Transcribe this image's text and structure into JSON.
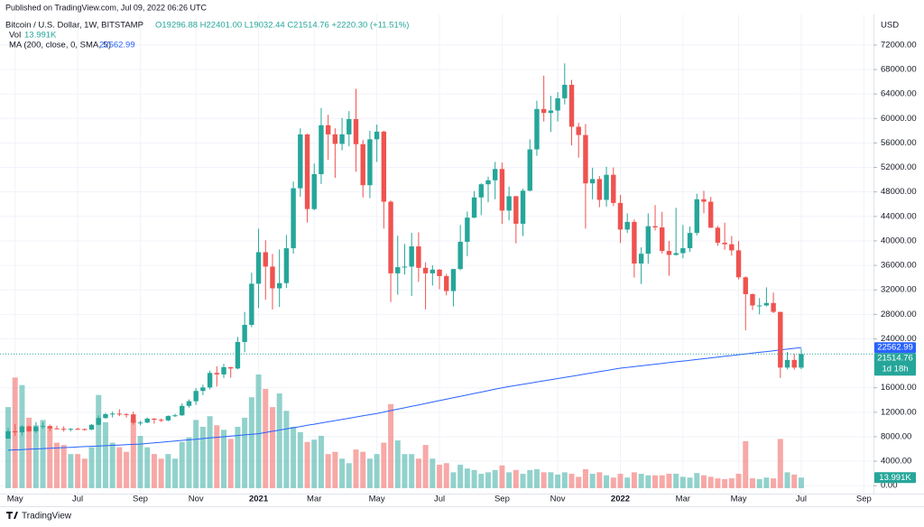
{
  "header": "Published on TradingView.com, Jul 09, 2022 06:26 UTC",
  "footer": "TradingView",
  "chart_data": {
    "type": "candlestick",
    "title": "Bitcoin / U.S. Dollar, 1W, BITSTAMP",
    "ohlc_legend": "O19296.88 H22401.00 L19032.44 C21514.76 +2220.30 (+11.51%)",
    "volume_legend": {
      "name": "Vol",
      "value": "13.991K"
    },
    "ma_legend": {
      "name": "MA (200, close, 0, SMA, 5)"
    },
    "axis_unit": "USD",
    "time_to_close": "1d 18h",
    "up_color": "#26a69a",
    "down_color": "#ef5350",
    "grid": true,
    "ylim": [
      -1000,
      77000
    ],
    "yticks": [
      {
        "value": 0,
        "label": "0.00"
      },
      {
        "value": 4000,
        "label": "4000.00"
      },
      {
        "value": 8000,
        "label": "8000.00"
      },
      {
        "value": 12000,
        "label": "12000.00"
      },
      {
        "value": 16000,
        "label": "16000.00"
      },
      {
        "value": 24000,
        "label": "24000.00"
      },
      {
        "value": 28000,
        "label": "28000.00"
      },
      {
        "value": 32000,
        "label": "32000.00"
      },
      {
        "value": 36000,
        "label": "36000.00"
      },
      {
        "value": 40000,
        "label": "40000.00"
      },
      {
        "value": 44000,
        "label": "44000.00"
      },
      {
        "value": 48000,
        "label": "48000.00"
      },
      {
        "value": 52000,
        "label": "52000.00"
      },
      {
        "value": 56000,
        "label": "56000.00"
      },
      {
        "value": 60000,
        "label": "60000.00"
      },
      {
        "value": 64000,
        "label": "64000.00"
      },
      {
        "value": 68000,
        "label": "68000.00"
      },
      {
        "value": 72000,
        "label": "72000.00"
      }
    ],
    "categories": [
      null,
      "May",
      null,
      null,
      null,
      null,
      null,
      null,
      null,
      null,
      "Jul",
      null,
      null,
      null,
      null,
      null,
      null,
      null,
      null,
      "Sep",
      null,
      null,
      null,
      null,
      null,
      null,
      null,
      "Nov",
      null,
      null,
      null,
      null,
      null,
      null,
      null,
      null,
      "2021",
      null,
      null,
      null,
      null,
      null,
      null,
      null,
      "Mar",
      null,
      null,
      null,
      null,
      null,
      null,
      null,
      null,
      "May",
      null,
      null,
      null,
      null,
      null,
      null,
      null,
      null,
      "Jul",
      null,
      null,
      null,
      null,
      null,
      null,
      null,
      null,
      "Sep",
      null,
      null,
      null,
      null,
      null,
      null,
      null,
      "Nov",
      null,
      null,
      null,
      null,
      null,
      null,
      null,
      null,
      "2022",
      null,
      null,
      null,
      null,
      null,
      null,
      null,
      null,
      "Mar",
      null,
      null,
      null,
      null,
      null,
      null,
      null,
      "May",
      null,
      null,
      null,
      null,
      null,
      null,
      null,
      null,
      "Jul",
      null,
      null,
      null,
      null,
      null,
      null,
      null,
      null,
      "Sep"
    ],
    "open": [
      7700,
      8900,
      8720,
      9680,
      8900,
      9650,
      9750,
      9360,
      9300,
      9190,
      9290,
      9250,
      9160,
      9950,
      11050,
      11690,
      11780,
      11700,
      11650,
      10280,
      10320,
      10950,
      10770,
      10670,
      11380,
      11500,
      13040,
      13800,
      15480,
      16050,
      18420,
      18180,
      19370,
      19150,
      23480,
      26280,
      33000,
      38150,
      35800,
      32250,
      33100,
      38800,
      48600,
      57400,
      45200,
      50900,
      58900,
      57400,
      55850,
      57400,
      59900,
      55800,
      49100,
      56600,
      57850,
      46400,
      34700,
      35700,
      35800,
      39100,
      35600,
      34700,
      35300,
      34250,
      31800,
      35400,
      39850,
      43800,
      47100,
      49250,
      49900,
      51750,
      44950,
      47300,
      42800,
      48200,
      54950,
      61550,
      60900,
      61300,
      63300,
      65500,
      58650,
      57300,
      49400,
      50100,
      46700,
      50800,
      46200,
      41850,
      43100,
      36300,
      37900,
      42400,
      42200,
      38350,
      37700,
      38000,
      38800,
      41300,
      46800,
      46400,
      42150,
      39700,
      39450,
      38450,
      34050,
      31300,
      29450,
      29450,
      29850,
      28400,
      19300,
      20550,
      19296.88,
      null,
      null,
      null,
      null,
      null,
      null,
      null,
      null,
      null
    ],
    "high": [
      9450,
      10050,
      9900,
      9840,
      10400,
      10380,
      9990,
      9800,
      9700,
      9380,
      9470,
      9350,
      10080,
      11450,
      11900,
      12100,
      12480,
      11820,
      12100,
      10600,
      11150,
      11050,
      10980,
      11500,
      11740,
      13450,
      14100,
      15960,
      16500,
      18800,
      19500,
      19920,
      19420,
      24300,
      28400,
      34800,
      42000,
      40100,
      37860,
      38600,
      40950,
      49700,
      58400,
      57500,
      52640,
      61700,
      60600,
      58400,
      60100,
      61200,
      64850,
      56500,
      58000,
      59000,
      58000,
      46600,
      40850,
      39500,
      41300,
      41400,
      36500,
      36000,
      35400,
      34600,
      35400,
      42600,
      44800,
      48150,
      49400,
      50500,
      52900,
      52800,
      48850,
      47350,
      48500,
      56600,
      62900,
      67000,
      63700,
      64300,
      69000,
      66300,
      59300,
      59100,
      51950,
      50600,
      52100,
      52000,
      47500,
      44500,
      43500,
      38950,
      44500,
      45850,
      44750,
      40000,
      45400,
      42600,
      42350,
      47700,
      48200,
      47200,
      42450,
      42950,
      40800,
      40000,
      34200,
      31400,
      30650,
      32400,
      31550,
      28400,
      21850,
      21550,
      22401,
      null,
      null,
      null,
      null,
      null,
      null,
      null,
      null,
      null
    ],
    "low": [
      7650,
      8150,
      8200,
      8700,
      8640,
      9300,
      8900,
      9200,
      8850,
      8900,
      9100,
      9000,
      9120,
      9870,
      10950,
      11150,
      11350,
      11120,
      9950,
      9850,
      10200,
      10140,
      10400,
      10530,
      11220,
      11400,
      12750,
      13200,
      14800,
      15760,
      16200,
      17600,
      17650,
      19000,
      21800,
      25900,
      29000,
      30400,
      28800,
      29200,
      32300,
      37900,
      47200,
      43000,
      45000,
      49300,
      53250,
      50300,
      54800,
      55450,
      51300,
      47100,
      47000,
      52900,
      42000,
      30000,
      31200,
      34500,
      31000,
      33300,
      28800,
      32700,
      32100,
      31100,
      29300,
      35200,
      37500,
      43700,
      44200,
      46300,
      46800,
      42800,
      43350,
      39600,
      40800,
      48100,
      53900,
      59500,
      57800,
      59500,
      62300,
      55600,
      53600,
      42000,
      46800,
      45500,
      45600,
      45700,
      39650,
      41300,
      34000,
      32950,
      36250,
      41700,
      37950,
      34300,
      37600,
      37150,
      38200,
      40900,
      44500,
      42100,
      39200,
      38550,
      37600,
      33700,
      25400,
      28700,
      28000,
      29300,
      28200,
      17600,
      19000,
      18950,
      19032.44,
      null,
      null,
      null,
      null,
      null,
      null,
      null,
      null,
      null
    ],
    "close": [
      8900,
      8720,
      9680,
      8900,
      9650,
      9750,
      9360,
      9300,
      9190,
      9290,
      9250,
      9160,
      9950,
      11050,
      11690,
      11780,
      11700,
      11650,
      10280,
      10320,
      10950,
      10770,
      10670,
      11380,
      11500,
      13040,
      13800,
      15480,
      16050,
      18420,
      18180,
      19370,
      19150,
      23480,
      26280,
      33000,
      38150,
      35800,
      32250,
      33100,
      38800,
      48600,
      57400,
      45200,
      50900,
      58900,
      57400,
      55850,
      57400,
      59900,
      55800,
      49100,
      56600,
      57850,
      46400,
      34700,
      35700,
      35800,
      39100,
      35600,
      34700,
      35300,
      34250,
      31800,
      35400,
      39850,
      43800,
      47100,
      49250,
      49900,
      51750,
      44950,
      47300,
      42800,
      48200,
      54950,
      61550,
      60900,
      61300,
      63300,
      65500,
      58650,
      57300,
      49400,
      50100,
      46700,
      50800,
      46200,
      41850,
      43100,
      36300,
      37900,
      42400,
      42200,
      38350,
      37700,
      38000,
      38800,
      41300,
      46800,
      46400,
      42150,
      39700,
      39450,
      38450,
      34050,
      31300,
      29450,
      29450,
      29850,
      28400,
      19300,
      20550,
      19300,
      21514.76,
      null,
      null,
      null,
      null,
      null,
      null,
      null,
      null,
      null
    ],
    "volume": [
      107,
      146,
      136,
      93,
      83,
      90,
      81,
      60,
      57,
      45,
      45,
      39,
      54,
      123,
      87,
      60,
      54,
      48,
      90,
      69,
      54,
      45,
      39,
      45,
      39,
      61,
      67,
      90,
      81,
      95,
      83,
      77,
      65,
      81,
      93,
      120,
      150,
      131,
      107,
      125,
      102,
      81,
      74,
      61,
      64,
      69,
      45,
      48,
      39,
      33,
      51,
      48,
      39,
      45,
      60,
      111,
      63,
      45,
      45,
      39,
      57,
      39,
      31,
      33,
      21,
      31,
      26,
      24,
      19,
      21,
      24,
      30,
      21,
      24,
      19,
      24,
      25,
      21,
      21,
      18,
      21,
      19,
      15,
      25,
      19,
      21,
      17,
      14,
      19,
      14,
      21,
      19,
      17,
      17,
      17,
      19,
      19,
      15,
      14,
      20,
      17,
      15,
      13,
      12,
      13,
      19,
      62,
      13,
      12,
      14,
      13,
      65,
      21,
      18,
      13.991,
      null,
      null,
      null,
      null,
      null,
      null,
      null,
      null,
      null
    ],
    "ma": {
      "name": "MA (200, close, 0, SMA, 5)",
      "color": "#2962ff",
      "values": [
        5800,
        5850,
        5900,
        5960,
        6010,
        6060,
        6120,
        6170,
        6220,
        6270,
        6330,
        6380,
        6430,
        6480,
        6540,
        6590,
        6640,
        6690,
        6750,
        6800,
        6900,
        7000,
        7100,
        7200,
        7300,
        7400,
        7500,
        7600,
        7700,
        7800,
        7900,
        8000,
        8100,
        8200,
        8300,
        8400,
        8500,
        8690,
        8890,
        9080,
        9280,
        9470,
        9660,
        9860,
        10050,
        10250,
        10440,
        10640,
        10830,
        11020,
        11220,
        11410,
        11610,
        11800,
        12030,
        12270,
        12500,
        12730,
        12970,
        13200,
        13430,
        13670,
        13900,
        14130,
        14370,
        14600,
        14830,
        15070,
        15300,
        15530,
        15770,
        16000,
        16190,
        16380,
        16560,
        16750,
        16940,
        17130,
        17320,
        17510,
        17690,
        17880,
        18070,
        18260,
        18450,
        18640,
        18820,
        19010,
        19200,
        19330,
        19460,
        19590,
        19720,
        19850,
        19980,
        20110,
        20240,
        20360,
        20490,
        20620,
        20750,
        20880,
        21010,
        21140,
        21270,
        21400,
        21530,
        21660,
        21790,
        21920,
        22050,
        22180,
        22310,
        22440,
        22562.99,
        null,
        null,
        null,
        null,
        null,
        null,
        null,
        null,
        null
      ]
    }
  }
}
